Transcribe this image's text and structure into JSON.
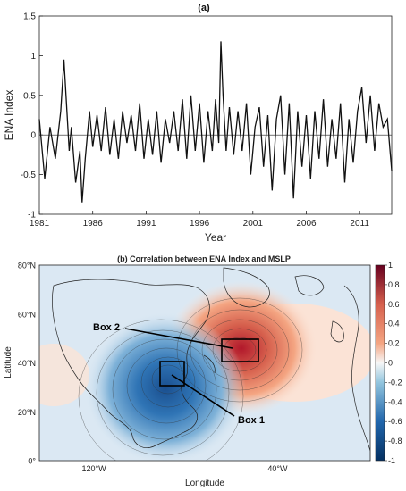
{
  "chart_data": [
    {
      "type": "line",
      "title": "(a)",
      "xlabel": "Year",
      "ylabel": "ENA Index",
      "xlim": [
        1981,
        2014
      ],
      "ylim": [
        -1,
        1.5
      ],
      "xticks": [
        1981,
        1986,
        1991,
        1996,
        2001,
        2006,
        2011
      ],
      "yticks": [
        -1,
        -0.5,
        0,
        0.5,
        1,
        1.5
      ],
      "series": [
        {
          "x": [
            1981.0,
            1981.5,
            1982.0,
            1982.5,
            1983.0,
            1983.3,
            1983.5,
            1983.8,
            1984.0,
            1984.4,
            1984.8,
            1985.0,
            1985.3,
            1985.7,
            1986.0,
            1986.4,
            1986.8,
            1987.2,
            1987.6,
            1988.0,
            1988.4,
            1988.8,
            1989.2,
            1989.6,
            1990.0,
            1990.4,
            1990.8,
            1991.2,
            1991.6,
            1992.0,
            1992.4,
            1992.8,
            1993.2,
            1993.6,
            1994.0,
            1994.4,
            1994.8,
            1995.2,
            1995.6,
            1996.0,
            1996.4,
            1996.8,
            1997.2,
            1997.5,
            1997.8,
            1998.0,
            1998.2,
            1998.5,
            1998.8,
            1999.2,
            1999.6,
            2000.0,
            2000.4,
            2000.8,
            2001.2,
            2001.6,
            2002.0,
            2002.4,
            2002.8,
            2003.2,
            2003.6,
            2004.0,
            2004.4,
            2004.8,
            2005.2,
            2005.6,
            2006.0,
            2006.4,
            2006.8,
            2007.2,
            2007.6,
            2008.0,
            2008.4,
            2008.8,
            2009.2,
            2009.6,
            2010.0,
            2010.4,
            2010.8,
            2011.2,
            2011.6,
            2012.0,
            2012.4,
            2012.8,
            2013.2,
            2013.6,
            2014.0
          ],
          "y": [
            0.2,
            -0.55,
            0.1,
            -0.3,
            0.3,
            0.95,
            0.5,
            -0.2,
            0.1,
            -0.6,
            -0.2,
            -0.85,
            -0.3,
            0.3,
            -0.15,
            0.25,
            -0.2,
            0.35,
            -0.25,
            0.2,
            -0.3,
            0.3,
            -0.1,
            0.25,
            -0.2,
            0.4,
            -0.3,
            0.2,
            -0.25,
            0.3,
            -0.35,
            0.2,
            -0.1,
            0.3,
            -0.2,
            0.45,
            -0.3,
            0.5,
            -0.2,
            0.4,
            -0.35,
            0.3,
            -0.2,
            0.45,
            -0.1,
            1.18,
            0.5,
            -0.2,
            0.35,
            -0.25,
            0.3,
            -0.2,
            0.4,
            -0.5,
            0.1,
            0.35,
            -0.4,
            0.25,
            -0.7,
            0.2,
            0.5,
            -0.5,
            0.4,
            -0.8,
            0.3,
            -0.4,
            0.25,
            -0.55,
            0.3,
            -0.3,
            0.45,
            -0.4,
            0.2,
            -0.3,
            0.4,
            -0.6,
            0.2,
            -0.35,
            0.3,
            0.6,
            -0.1,
            0.5,
            -0.2,
            0.4,
            0.1,
            0.2,
            -0.45
          ]
        }
      ]
    },
    {
      "type": "heatmap",
      "title": "(b) Correlation between ENA Index and MSLP",
      "xlabel": "Longitude",
      "ylabel": "Latitude",
      "xtick_labels": [
        "120°W",
        "40°W"
      ],
      "ytick_labels": [
        "0°",
        "20°N",
        "40°N",
        "60°N",
        "80°N"
      ],
      "colorbar_ticks": [
        -1,
        -0.8,
        -0.6,
        -0.4,
        -0.2,
        0,
        0.2,
        0.4,
        0.6,
        0.8,
        1
      ],
      "colorbar_range": [
        -1,
        1
      ],
      "annotations": [
        "Box 2",
        "Box 1"
      ],
      "colors": {
        "positive": "#b2182b",
        "negative": "#2166ac",
        "neutral": "#f7f7f7"
      }
    }
  ]
}
